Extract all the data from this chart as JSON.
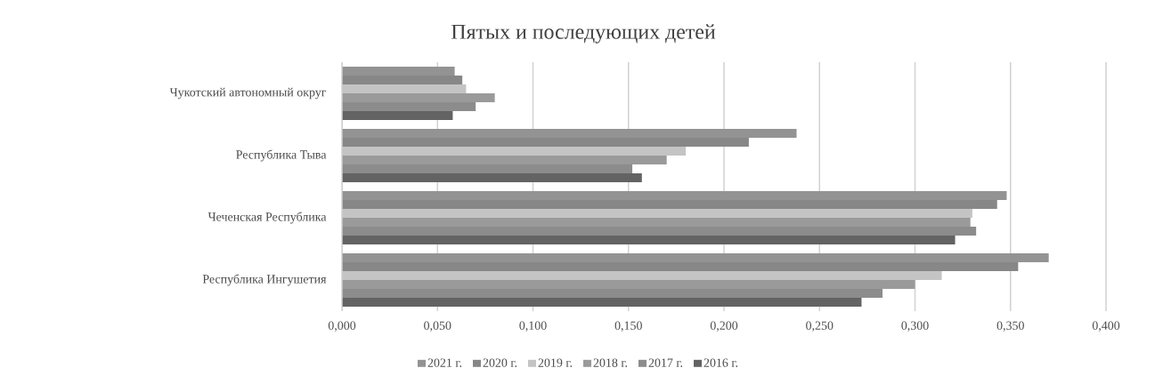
{
  "chart_data": {
    "type": "bar",
    "orientation": "horizontal",
    "title": "Пятых и последующих детей",
    "categories": [
      "Чукотский автономный округ",
      "Республика Тыва",
      "Чеченская Республика",
      "Республика Ингушетия"
    ],
    "series": [
      {
        "name": "2021 г.",
        "color": "#939393",
        "values": [
          0.059,
          0.238,
          0.348,
          0.37
        ]
      },
      {
        "name": "2020 г.",
        "color": "#878787",
        "values": [
          0.063,
          0.213,
          0.343,
          0.354
        ]
      },
      {
        "name": "2019 г.",
        "color": "#c4c4c4",
        "values": [
          0.065,
          0.18,
          0.33,
          0.314
        ]
      },
      {
        "name": "2018 г.",
        "color": "#9a9a9a",
        "values": [
          0.08,
          0.17,
          0.329,
          0.3
        ]
      },
      {
        "name": "2017 г.",
        "color": "#8c8c8c",
        "values": [
          0.07,
          0.152,
          0.332,
          0.283
        ]
      },
      {
        "name": "2016 г.",
        "color": "#636363",
        "values": [
          0.058,
          0.157,
          0.321,
          0.272
        ]
      }
    ],
    "xlim": [
      0,
      0.4
    ],
    "xticks": [
      {
        "value": 0,
        "label": "0,000"
      },
      {
        "value": 0.05,
        "label": "0,050"
      },
      {
        "value": 0.1,
        "label": "0,100"
      },
      {
        "value": 0.15,
        "label": "0,150"
      },
      {
        "value": 0.2,
        "label": "0,200"
      },
      {
        "value": 0.25,
        "label": "0,250"
      },
      {
        "value": 0.3,
        "label": "0,300"
      },
      {
        "value": 0.35,
        "label": "0,350"
      },
      {
        "value": 0.4,
        "label": "0,400"
      }
    ],
    "grid": "x",
    "legend": "bottom"
  }
}
